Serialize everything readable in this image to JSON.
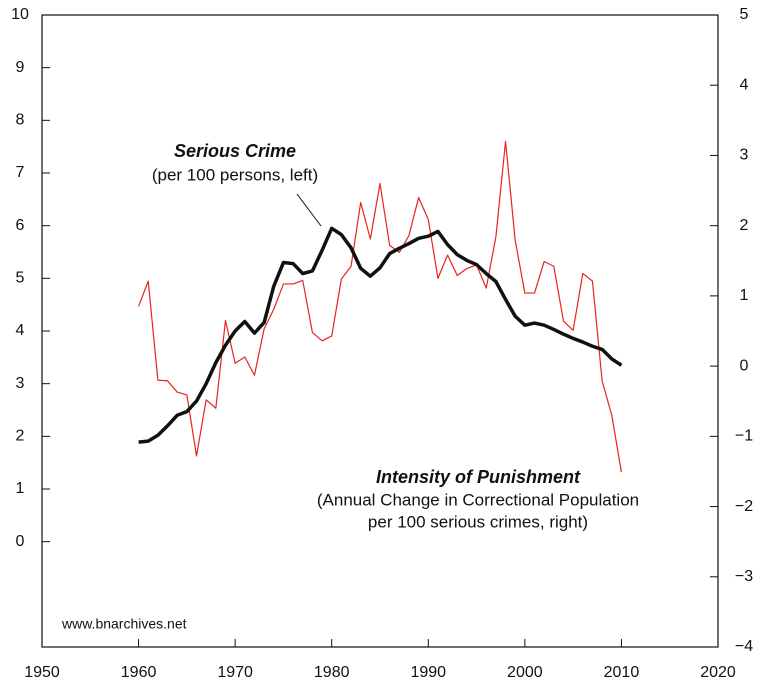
{
  "chart_data": {
    "type": "line",
    "x": [
      1960,
      1961,
      1962,
      1963,
      1964,
      1965,
      1966,
      1967,
      1968,
      1969,
      1970,
      1971,
      1972,
      1973,
      1974,
      1975,
      1976,
      1977,
      1978,
      1979,
      1980,
      1981,
      1982,
      1983,
      1984,
      1985,
      1986,
      1987,
      1988,
      1989,
      1990,
      1991,
      1992,
      1993,
      1994,
      1995,
      1996,
      1997,
      1998,
      1999,
      2000,
      2001,
      2002,
      2003,
      2004,
      2005,
      2006,
      2007,
      2008,
      2009,
      2010
    ],
    "series": [
      {
        "name": "Serious Crime",
        "color": "#111111",
        "axis": "y",
        "values": [
          1.89,
          1.91,
          2.02,
          2.2,
          2.4,
          2.47,
          2.67,
          3.0,
          3.4,
          3.73,
          4.0,
          4.18,
          3.96,
          4.16,
          4.85,
          5.3,
          5.28,
          5.09,
          5.14,
          5.53,
          5.95,
          5.83,
          5.58,
          5.19,
          5.04,
          5.2,
          5.47,
          5.57,
          5.66,
          5.76,
          5.8,
          5.89,
          5.64,
          5.45,
          5.34,
          5.26,
          5.09,
          4.94,
          4.6,
          4.28,
          4.11,
          4.15,
          4.11,
          4.03,
          3.94,
          3.86,
          3.79,
          3.71,
          3.65,
          3.47,
          3.35
        ]
      },
      {
        "name": "Intensity of Punishment",
        "color": "#e8231e",
        "axis": "y2",
        "values": [
          0.85,
          1.21,
          -0.2,
          -0.21,
          -0.37,
          -0.41,
          -1.28,
          -0.48,
          -0.6,
          0.65,
          0.04,
          0.13,
          -0.13,
          0.53,
          0.81,
          1.17,
          1.17,
          1.22,
          0.48,
          0.36,
          0.43,
          1.24,
          1.42,
          2.33,
          1.81,
          2.6,
          1.72,
          1.62,
          1.86,
          2.4,
          2.09,
          1.25,
          1.58,
          1.29,
          1.39,
          1.44,
          1.11,
          1.84,
          3.2,
          1.79,
          1.04,
          1.04,
          1.49,
          1.42,
          0.64,
          0.51,
          1.32,
          1.21,
          -0.21,
          -0.7,
          -1.51
        ]
      }
    ],
    "annotations": [
      "(per 100 persons, left)",
      "(Annual Change in Correctional Population",
      "per 100 serious crimes, right)",
      "www.bnarchives.net"
    ],
    "xlim": [
      1950,
      2020
    ],
    "xticks": [
      1950,
      1960,
      1970,
      1980,
      1990,
      2000,
      2010,
      2020
    ],
    "ylim": [
      -2,
      10
    ],
    "yticks": [
      0,
      1,
      2,
      3,
      4,
      5,
      6,
      7,
      8,
      9,
      10
    ],
    "y2lim": [
      -4,
      5
    ],
    "y2ticks": [
      {
        "value": -4,
        "label": "−4"
      },
      {
        "value": -3,
        "label": "−3"
      },
      {
        "value": -2,
        "label": "−2"
      },
      {
        "value": -1,
        "label": "−1"
      },
      0,
      1,
      2,
      3,
      4,
      5
    ]
  }
}
